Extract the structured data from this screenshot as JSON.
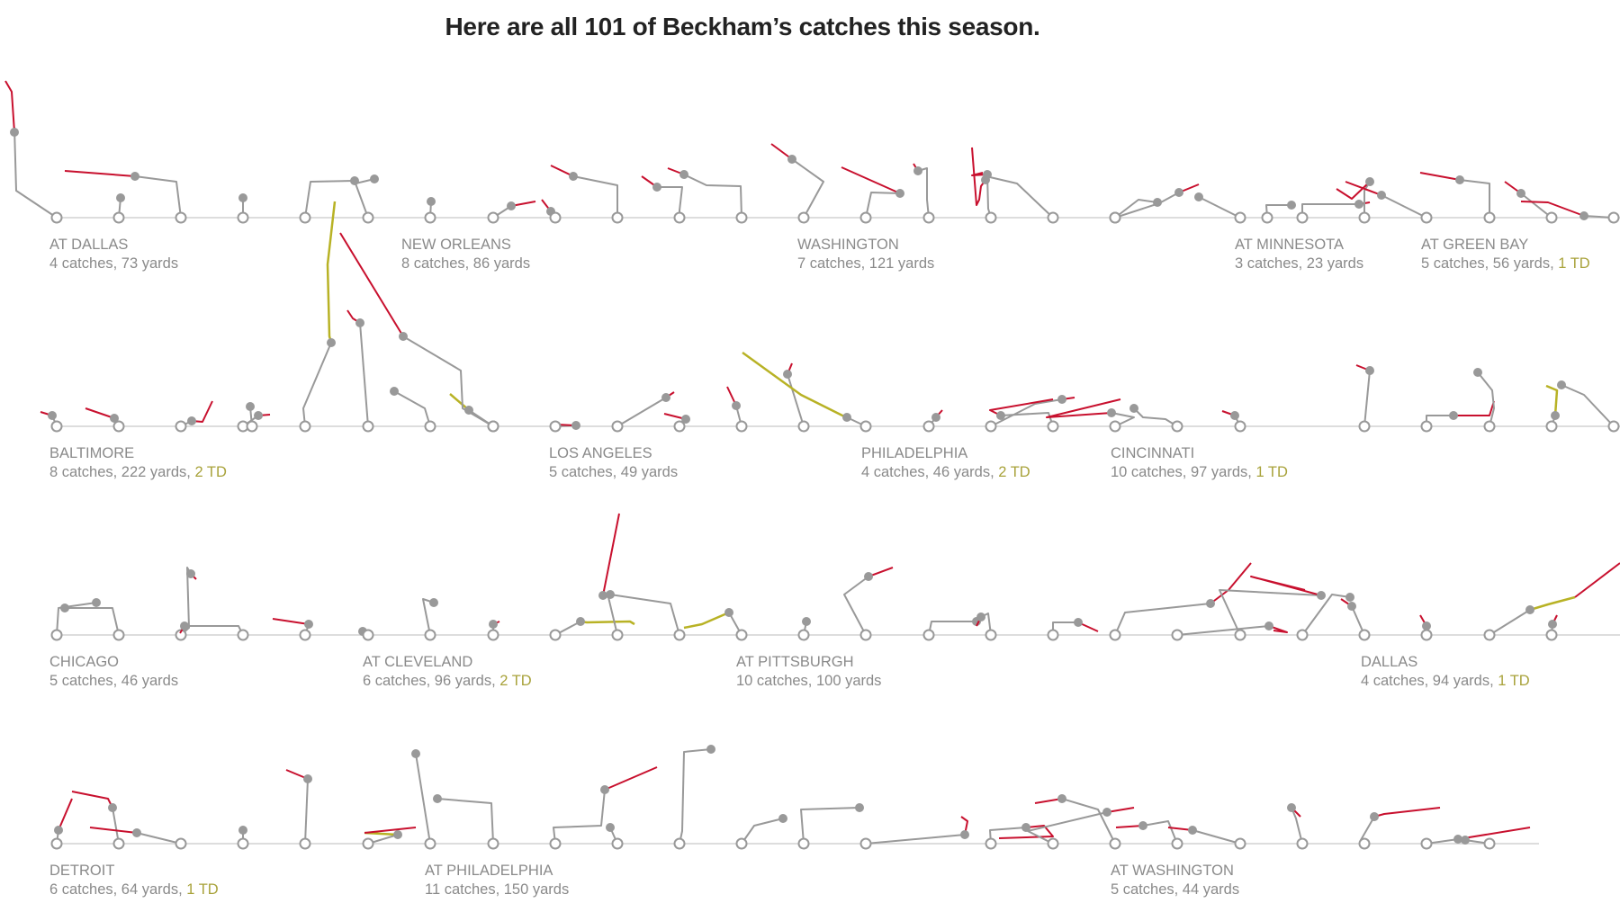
{
  "title": "Here are all 101 of Beckham’s catches this season.",
  "colors": {
    "baseline": "#dddddd",
    "route": "#999999",
    "catch_dot": "#999999",
    "after_catch": "#c8102e",
    "touchdown": "#b8b225",
    "td_text": "#a8a23a",
    "label_text": "#8a8a8a"
  },
  "games": [
    {
      "name": "AT DALLAS",
      "catches": "4 catches, 73 yards",
      "td": ""
    },
    {
      "name": "NEW ORLEANS",
      "catches": "8 catches, 86 yards",
      "td": ""
    },
    {
      "name": "WASHINGTON",
      "catches": "7 catches, 121 yards",
      "td": ""
    },
    {
      "name": "AT MINNESOTA",
      "catches": "3 catches, 23 yards",
      "td": ""
    },
    {
      "name": "AT GREEN BAY",
      "catches": "5 catches, 56 yards, ",
      "td": "1 TD"
    },
    {
      "name": "BALTIMORE",
      "catches": "8 catches, 222 yards, ",
      "td": "2 TD"
    },
    {
      "name": "LOS ANGELES",
      "catches": "5 catches, 49 yards",
      "td": ""
    },
    {
      "name": "PHILADELPHIA",
      "catches": "4 catches, 46 yards, ",
      "td": "2 TD"
    },
    {
      "name": "CINCINNATI",
      "catches": "10 catches, 97 yards, ",
      "td": "1 TD"
    },
    {
      "name": "CHICAGO",
      "catches": "5 catches, 46 yards",
      "td": ""
    },
    {
      "name": "AT CLEVELAND",
      "catches": "6 catches, 96 yards, ",
      "td": "2 TD"
    },
    {
      "name": "AT PITTSBURGH",
      "catches": "10 catches, 100 yards",
      "td": ""
    },
    {
      "name": "DALLAS",
      "catches": "4 catches, 94 yards, ",
      "td": "1 TD"
    },
    {
      "name": "DETROIT",
      "catches": "6 catches, 64 yards, ",
      "td": "1 TD"
    },
    {
      "name": "AT PHILADELPHIA",
      "catches": "11 catches, 150 yards",
      "td": ""
    },
    {
      "name": "AT WASHINGTON",
      "catches": "5 catches, 44 yards",
      "td": ""
    }
  ]
}
